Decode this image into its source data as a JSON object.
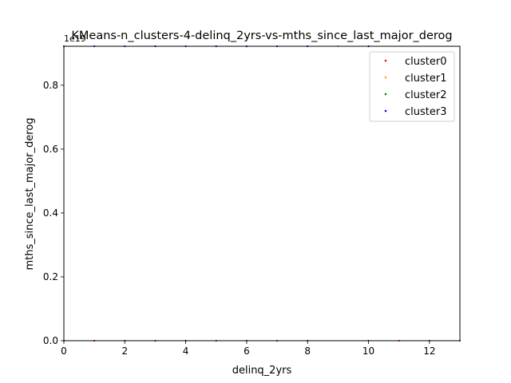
{
  "chart_data": {
    "type": "scatter",
    "title": "KMeans-n_clusters-4-delinq_2yrs-vs-mths_since_last_major_derog",
    "xlabel": "delinq_2yrs",
    "ylabel": "mths_since_last_major_derog",
    "offset_text": "1e19",
    "xlim": [
      0,
      13
    ],
    "ylim": [
      0,
      0.922
    ],
    "y_scale_factor": 1e+19,
    "x_ticks": [
      0,
      2,
      4,
      6,
      8,
      10,
      12
    ],
    "x_tick_labels": [
      "0",
      "2",
      "4",
      "6",
      "8",
      "10",
      "12"
    ],
    "y_ticks": [
      0.0,
      0.2,
      0.4,
      0.6,
      0.8
    ],
    "y_tick_labels": [
      "0.0",
      "0.2",
      "0.4",
      "0.6",
      "0.8"
    ],
    "grid": false,
    "legend_position": "top-right",
    "series": [
      {
        "name": "cluster0",
        "color": "#ff0000",
        "points": [
          [
            0,
            0
          ],
          [
            1,
            0
          ],
          [
            2,
            0
          ],
          [
            3,
            0
          ],
          [
            4,
            0
          ],
          [
            5,
            0
          ],
          [
            6,
            0
          ],
          [
            7,
            0
          ],
          [
            8,
            0
          ],
          [
            10,
            0
          ],
          [
            11,
            0
          ],
          [
            12,
            0
          ],
          [
            13,
            0
          ]
        ]
      },
      {
        "name": "cluster1",
        "color": "#ffa500",
        "points": [
          [
            9,
            0.922
          ]
        ]
      },
      {
        "name": "cluster2",
        "color": "#008000",
        "points": []
      },
      {
        "name": "cluster3",
        "color": "#0000ff",
        "points": [
          [
            0,
            0.922
          ],
          [
            1,
            0.922
          ],
          [
            2,
            0.922
          ],
          [
            3,
            0.922
          ],
          [
            4,
            0.922
          ],
          [
            5,
            0.922
          ],
          [
            6,
            0.922
          ],
          [
            7,
            0.922
          ],
          [
            8,
            0.922
          ],
          [
            10,
            0.922
          ]
        ]
      }
    ]
  }
}
